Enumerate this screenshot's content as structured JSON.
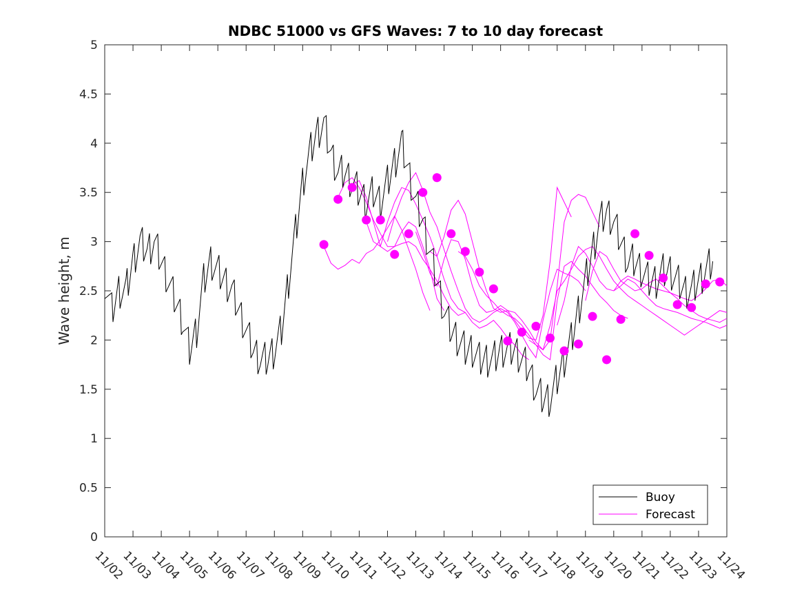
{
  "chart_data": {
    "type": "line",
    "title": "NDBC 51000 vs GFS Waves: 7 to 10 day forecast",
    "xlabel": "",
    "ylabel": "Wave height, m",
    "xlim": [
      0,
      22
    ],
    "ylim": [
      0,
      5
    ],
    "yticks": [
      0,
      0.5,
      1,
      1.5,
      2,
      2.5,
      3,
      3.5,
      4,
      4.5,
      5
    ],
    "ytick_labels": [
      "0",
      "0.5",
      "1",
      "1.5",
      "2",
      "2.5",
      "3",
      "3.5",
      "4",
      "4.5",
      "5"
    ],
    "xticks": [
      0,
      1,
      2,
      3,
      4,
      5,
      6,
      7,
      8,
      9,
      10,
      11,
      12,
      13,
      14,
      15,
      16,
      17,
      18,
      19,
      20,
      21,
      22
    ],
    "xtick_labels": [
      "11/02",
      "11/03",
      "11/04",
      "11/05",
      "11/06",
      "11/07",
      "11/08",
      "11/09",
      "11/10",
      "11/11",
      "11/12",
      "11/13",
      "11/14",
      "11/15",
      "11/16",
      "11/17",
      "11/18",
      "11/19",
      "11/20",
      "11/21",
      "11/22",
      "11/23",
      "11/24"
    ],
    "grid": false,
    "legend": {
      "position": "bottom-right",
      "entries": [
        "Buoy",
        "Forecast"
      ]
    },
    "colors": {
      "buoy": "#000000",
      "forecast": "#ff00ff",
      "axes": "#262626"
    },
    "buoy": {
      "name": "Buoy",
      "x": [
        0,
        0.25,
        0.5,
        0.75,
        1,
        1.25,
        1.5,
        1.75,
        2,
        2.25,
        2.5,
        2.75,
        3,
        3.25,
        3.5,
        3.75,
        4,
        4.25,
        4.5,
        4.75,
        5,
        5.25,
        5.5,
        5.75,
        6,
        6.25,
        6.5,
        6.75,
        7,
        7.25,
        7.5,
        7.75,
        8,
        8.25,
        8.5,
        8.75,
        9,
        9.25,
        9.5,
        9.75,
        10,
        10.25,
        10.5,
        10.75,
        11,
        11.25,
        11.5,
        11.75,
        12,
        12.25,
        12.5,
        12.75,
        13,
        13.25,
        13.5,
        13.75,
        14,
        14.25,
        14.5,
        14.75,
        15,
        15.25,
        15.5,
        15.75,
        16,
        16.25,
        16.5,
        16.75,
        17,
        17.25,
        17.5,
        17.75,
        18,
        18.25,
        18.5,
        18.75,
        19,
        19.25,
        19.5,
        19.75,
        20,
        20.25,
        20.5,
        20.75,
        21,
        21.25,
        21.5
      ],
      "y": [
        2.6,
        2.3,
        2.5,
        2.5,
        2.8,
        3.0,
        2.9,
        3.0,
        2.8,
        2.6,
        2.4,
        2.2,
        1.9,
        2.1,
        2.6,
        2.8,
        2.7,
        2.6,
        2.5,
        2.3,
        2.1,
        1.9,
        1.8,
        1.8,
        1.9,
        2.1,
        2.6,
        3.1,
        3.6,
        3.9,
        4.1,
        4.2,
        3.9,
        3.7,
        3.7,
        3.6,
        3.5,
        3.4,
        3.5,
        3.4,
        3.6,
        3.8,
        4.0,
        3.7,
        3.4,
        3.2,
        2.9,
        2.6,
        2.3,
        2.1,
        2.0,
        1.9,
        1.9,
        1.8,
        1.8,
        1.8,
        1.9,
        1.9,
        1.9,
        1.8,
        1.7,
        1.5,
        1.4,
        1.4,
        1.6,
        1.8,
        2.0,
        2.3,
        2.6,
        2.9,
        3.2,
        3.3,
        3.2,
        3.0,
        2.8,
        2.8,
        2.7,
        2.6,
        2.6,
        2.7,
        2.7,
        2.6,
        2.5,
        2.5,
        2.6,
        2.7,
        2.8
      ]
    },
    "forecast": {
      "name": "Forecast",
      "series": [
        {
          "x": [
            7.75,
            8.0,
            8.25,
            8.5,
            8.75,
            9.0,
            9.25,
            9.5,
            9.75,
            10.0,
            10.25,
            10.5,
            10.75,
            11.0,
            11.25,
            11.5
          ],
          "y": [
            2.95,
            2.78,
            2.72,
            2.76,
            2.82,
            2.78,
            2.88,
            2.92,
            3.02,
            3.14,
            3.26,
            3.12,
            2.92,
            2.72,
            2.48,
            2.3
          ]
        },
        {
          "x": [
            8.25,
            8.5,
            8.75,
            9.0,
            9.25,
            9.5,
            9.75,
            10.0,
            10.25,
            10.5,
            10.75,
            11.0,
            11.25,
            11.5,
            11.75,
            12.0
          ],
          "y": [
            3.45,
            3.6,
            3.65,
            3.55,
            3.4,
            3.22,
            3.08,
            2.95,
            2.95,
            3.1,
            3.2,
            3.15,
            2.95,
            2.72,
            2.42,
            2.3
          ]
        },
        {
          "x": [
            8.75,
            9.0,
            9.25,
            9.5,
            9.75,
            10.0,
            10.25,
            10.5,
            10.75,
            11.0,
            11.25,
            11.5,
            11.75,
            12.0,
            12.25,
            12.5,
            12.75
          ],
          "y": [
            3.58,
            3.62,
            3.45,
            3.2,
            2.95,
            2.9,
            2.95,
            2.98,
            3.0,
            2.95,
            2.82,
            2.72,
            2.6,
            2.45,
            2.32,
            2.25,
            2.28
          ]
        },
        {
          "x": [
            9.25,
            9.5,
            9.75,
            10.0,
            10.25,
            10.5,
            10.75,
            11.0,
            11.25,
            11.5,
            11.75,
            12.0,
            12.25,
            12.5,
            12.75,
            13.0,
            13.25,
            13.5,
            13.75,
            14.0,
            14.25,
            14.5,
            14.75,
            15.0
          ],
          "y": [
            3.2,
            3.0,
            2.95,
            3.2,
            3.4,
            3.55,
            3.52,
            3.38,
            3.22,
            3.05,
            2.85,
            2.62,
            2.42,
            2.32,
            2.28,
            2.18,
            2.12,
            2.15,
            2.2,
            2.12,
            2.02,
            1.95,
            1.85,
            1.8
          ]
        },
        {
          "x": [
            10.0,
            10.25,
            10.5,
            10.75,
            11.0,
            11.25,
            11.5,
            11.75,
            12.0,
            12.25,
            12.5,
            12.75,
            13.0,
            13.25,
            13.5,
            13.75,
            14.0,
            14.25,
            14.5,
            14.75,
            15.0,
            15.25,
            15.5,
            15.75,
            16.0,
            16.25,
            16.5,
            16.75,
            17.0
          ],
          "y": [
            3.0,
            3.25,
            3.45,
            3.6,
            3.7,
            3.52,
            3.3,
            3.15,
            2.92,
            2.7,
            2.5,
            2.32,
            2.22,
            2.18,
            2.22,
            2.28,
            2.32,
            2.28,
            2.18,
            2.05,
            1.92,
            1.82,
            2.2,
            2.5,
            2.72,
            2.68,
            2.65,
            2.6,
            2.5
          ]
        },
        {
          "x": [
            11.0,
            11.25,
            11.5,
            11.75,
            12.0,
            12.25,
            12.5,
            12.75,
            13.0,
            13.25,
            13.5,
            13.75,
            14.0,
            14.25,
            14.5,
            14.75,
            15.0,
            15.25,
            15.5,
            15.75,
            16.0,
            16.25,
            16.5
          ],
          "y": [
            3.1,
            2.9,
            2.68,
            2.55,
            2.82,
            3.02,
            3.0,
            2.82,
            2.55,
            2.35,
            2.28,
            2.3,
            2.35,
            2.3,
            2.2,
            2.1,
            2.02,
            2.0,
            2.25,
            2.8,
            3.55,
            3.4,
            3.25
          ]
        },
        {
          "x": [
            11.5,
            11.75,
            12.0,
            12.25,
            12.5,
            12.75,
            13.0,
            13.25,
            13.5,
            13.75,
            14.0,
            14.25,
            14.5,
            14.75,
            15.0,
            15.25,
            15.5,
            15.75,
            16.0,
            16.25,
            16.5,
            16.75,
            17.0,
            17.25,
            17.5
          ],
          "y": [
            2.9,
            2.85,
            3.05,
            3.32,
            3.42,
            3.28,
            3.0,
            2.72,
            2.5,
            2.32,
            2.28,
            2.3,
            2.28,
            2.2,
            2.1,
            1.98,
            1.9,
            2.0,
            2.55,
            3.2,
            3.42,
            3.48,
            3.45,
            3.3,
            3.15
          ]
        },
        {
          "x": [
            12.5,
            12.75,
            13.0,
            13.25,
            13.5,
            13.75,
            14.0,
            14.25,
            14.5,
            14.75,
            15.0,
            15.25,
            15.5,
            15.75,
            16.0,
            16.25,
            16.5,
            16.75,
            17.0,
            17.25,
            17.5,
            17.75,
            18.0,
            18.25,
            18.5
          ],
          "y": [
            2.9,
            2.85,
            2.72,
            2.55,
            2.45,
            2.38,
            2.3,
            2.25,
            2.22,
            2.15,
            2.05,
            1.95,
            1.85,
            1.8,
            2.4,
            2.75,
            2.8,
            2.72,
            2.65,
            2.55,
            2.45,
            2.38,
            2.3,
            2.25,
            2.22
          ]
        },
        {
          "x": [
            15.0,
            15.25,
            15.5,
            15.75,
            16.0,
            16.25,
            16.5,
            16.75,
            17.0,
            17.25,
            17.5,
            17.75,
            18.0,
            18.25,
            18.5,
            18.75,
            19.0,
            19.25,
            19.5,
            19.75,
            20.0,
            20.25,
            20.5,
            20.75,
            21.0,
            21.25,
            21.5,
            21.75,
            22.0
          ],
          "y": [
            2.0,
            1.95,
            1.9,
            2.15,
            2.5,
            2.6,
            2.72,
            2.85,
            2.92,
            2.95,
            2.85,
            2.72,
            2.6,
            2.52,
            2.45,
            2.4,
            2.35,
            2.3,
            2.25,
            2.2,
            2.15,
            2.1,
            2.05,
            2.1,
            2.15,
            2.2,
            2.25,
            2.3,
            2.28
          ]
        },
        {
          "x": [
            16.0,
            16.25,
            16.5,
            16.75,
            17.0,
            17.25,
            17.5,
            17.75,
            18.0,
            18.25,
            18.5,
            18.75,
            19.0,
            19.25,
            19.5,
            19.75,
            20.0,
            20.25,
            20.5,
            20.75,
            21.0,
            21.25,
            21.5,
            21.75,
            22.0
          ],
          "y": [
            2.15,
            2.4,
            2.75,
            2.95,
            2.88,
            2.75,
            2.6,
            2.52,
            2.5,
            2.55,
            2.62,
            2.58,
            2.5,
            2.42,
            2.35,
            2.32,
            2.3,
            2.28,
            2.25,
            2.22,
            2.2,
            2.18,
            2.15,
            2.12,
            2.15
          ]
        },
        {
          "x": [
            17.0,
            17.25,
            17.5,
            17.75,
            18.0,
            18.25,
            18.5,
            18.75,
            19.0,
            19.25,
            19.5,
            19.75,
            20.0,
            20.25,
            20.5,
            20.75,
            21.0,
            21.25,
            21.5,
            21.75,
            22.0
          ],
          "y": [
            2.4,
            2.7,
            2.9,
            2.85,
            2.72,
            2.6,
            2.55,
            2.5,
            2.52,
            2.58,
            2.62,
            2.55,
            2.48,
            2.42,
            2.35,
            2.3,
            2.25,
            2.22,
            2.2,
            2.18,
            2.22
          ]
        },
        {
          "x": [
            18.0,
            18.25,
            18.5,
            18.75,
            19.0,
            19.25,
            19.5,
            19.75,
            20.0,
            20.25,
            20.5,
            20.75,
            21.0,
            21.25,
            21.5,
            21.75,
            22.0
          ],
          "y": [
            2.5,
            2.6,
            2.65,
            2.62,
            2.58,
            2.55,
            2.52,
            2.5,
            2.48,
            2.45,
            2.42,
            2.4,
            2.45,
            2.52,
            2.6,
            2.62,
            2.55
          ]
        }
      ],
      "markers": {
        "x": [
          7.75,
          8.25,
          8.75,
          9.25,
          9.75,
          10.25,
          10.75,
          11.25,
          11.75,
          12.25,
          12.75,
          13.25,
          13.75,
          14.25,
          14.75,
          15.25,
          15.75,
          16.25,
          16.75,
          17.25,
          17.75,
          18.25,
          18.75,
          19.25,
          19.75,
          20.25,
          20.75,
          21.25,
          21.75
        ],
        "y": [
          2.97,
          3.43,
          3.55,
          3.22,
          3.22,
          2.87,
          3.08,
          3.5,
          3.65,
          3.08,
          2.9,
          2.69,
          2.52,
          1.99,
          2.08,
          2.14,
          2.02,
          1.89,
          1.96,
          2.24,
          1.8,
          2.21,
          3.08,
          2.86,
          2.63,
          2.36,
          2.33,
          2.57,
          2.59
        ]
      }
    }
  }
}
